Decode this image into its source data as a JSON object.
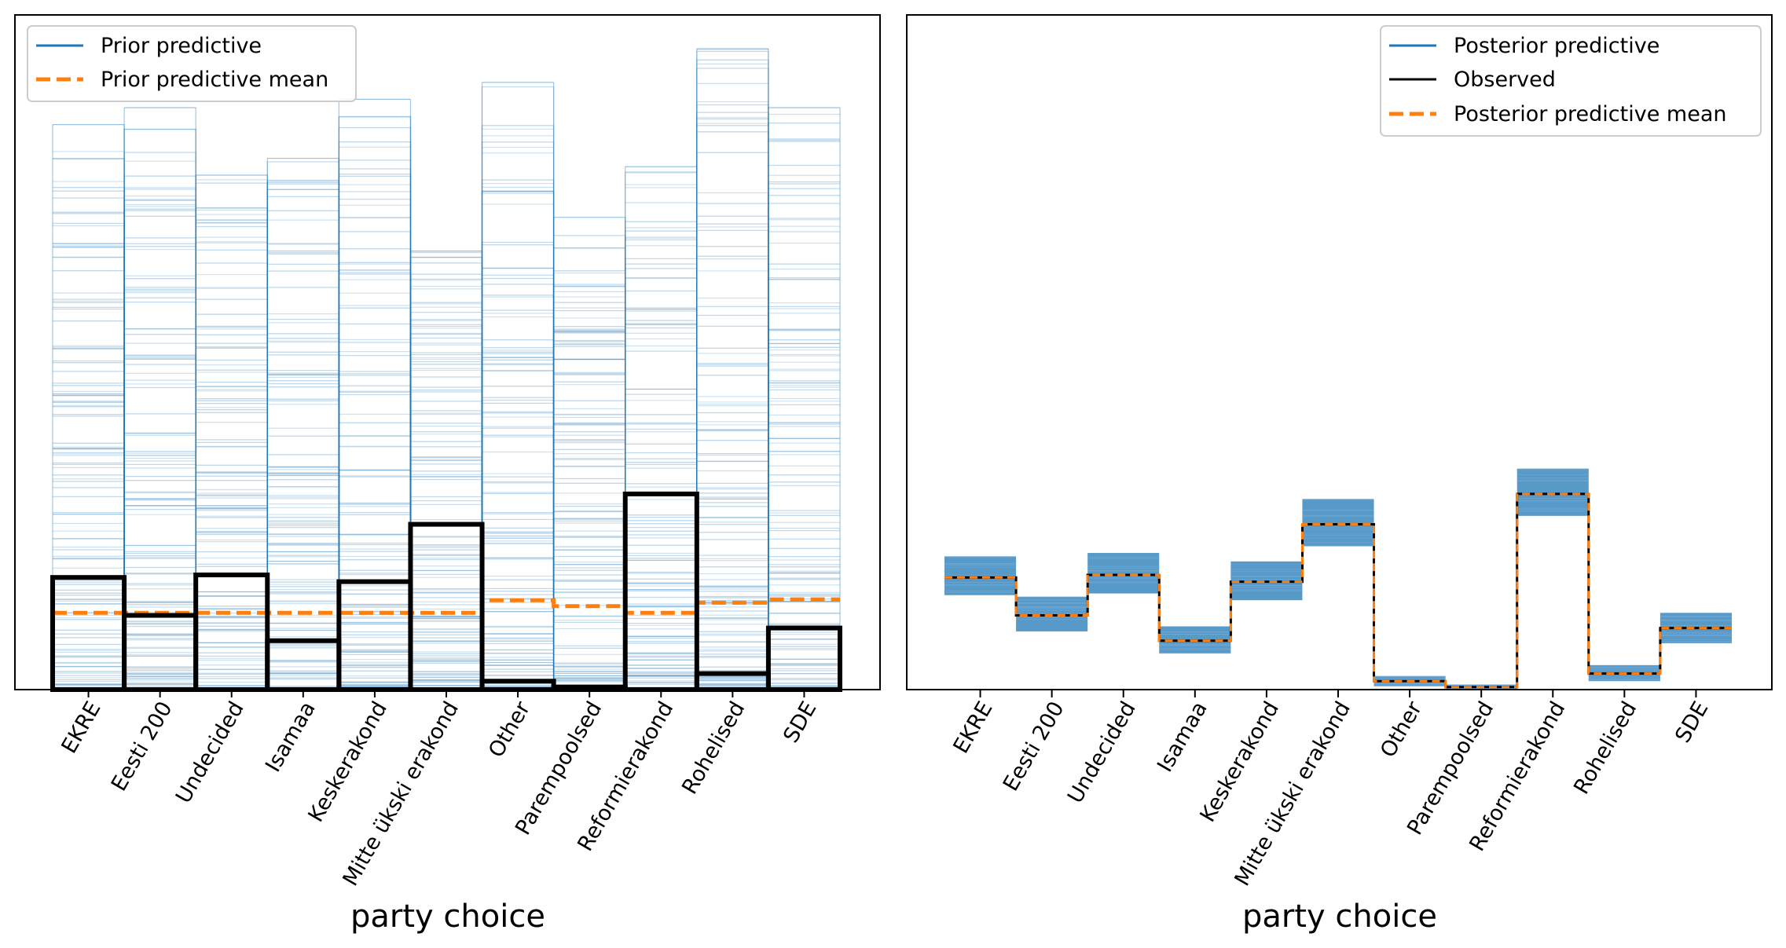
{
  "chart_data": [
    {
      "type": "bar",
      "title": "",
      "xlabel": "party choice",
      "ylabel": "",
      "categories": [
        "EKRE",
        "Eesti 200",
        "Undecided",
        "Isamaa",
        "Keskerakond",
        "Mitte ükski erakond",
        "Other",
        "Parempoolsed",
        "Reformierakond",
        "Rohelised",
        "SDE"
      ],
      "series": [
        {
          "name": "Observed",
          "values": [
            0.133,
            0.088,
            0.136,
            0.058,
            0.128,
            0.196,
            0.01,
            0.003,
            0.232,
            0.019,
            0.073
          ]
        },
        {
          "name": "Prior predictive mean",
          "values": [
            0.091,
            0.091,
            0.091,
            0.091,
            0.091,
            0.091,
            0.106,
            0.099,
            0.091,
            0.103,
            0.107
          ]
        }
      ],
      "prior_predictive_upper": [
        0.67,
        0.69,
        0.61,
        0.63,
        0.7,
        0.52,
        0.72,
        0.56,
        0.62,
        0.76,
        0.69
      ],
      "ylim": [
        0,
        0.8
      ],
      "legend": [
        "Prior predictive",
        "Prior predictive mean"
      ],
      "legend_position": "top-left",
      "colors": {
        "predictive": "#1f77b4",
        "mean": "#ff7f0e",
        "observed": "#000000"
      },
      "grid": false
    },
    {
      "type": "bar",
      "title": "",
      "xlabel": "party choice",
      "ylabel": "",
      "categories": [
        "EKRE",
        "Eesti 200",
        "Undecided",
        "Isamaa",
        "Keskerakond",
        "Mitte ükski erakond",
        "Other",
        "Parempoolsed",
        "Reformierakond",
        "Rohelised",
        "SDE"
      ],
      "series": [
        {
          "name": "Observed",
          "values": [
            0.133,
            0.088,
            0.136,
            0.058,
            0.128,
            0.196,
            0.01,
            0.003,
            0.232,
            0.019,
            0.073
          ]
        },
        {
          "name": "Posterior predictive mean",
          "values": [
            0.133,
            0.088,
            0.136,
            0.058,
            0.128,
            0.196,
            0.01,
            0.003,
            0.232,
            0.019,
            0.073
          ]
        }
      ],
      "posterior_predictive_low": [
        0.112,
        0.069,
        0.114,
        0.043,
        0.106,
        0.17,
        0.004,
        0.0,
        0.206,
        0.01,
        0.055
      ],
      "posterior_predictive_high": [
        0.158,
        0.11,
        0.162,
        0.075,
        0.152,
        0.226,
        0.016,
        0.006,
        0.262,
        0.029,
        0.091
      ],
      "ylim": [
        0,
        0.8
      ],
      "legend": [
        "Posterior predictive",
        "Observed",
        "Posterior predictive mean"
      ],
      "legend_position": "top-right",
      "colors": {
        "predictive": "#1f77b4",
        "mean": "#ff7f0e",
        "observed": "#000000"
      },
      "grid": false
    }
  ]
}
